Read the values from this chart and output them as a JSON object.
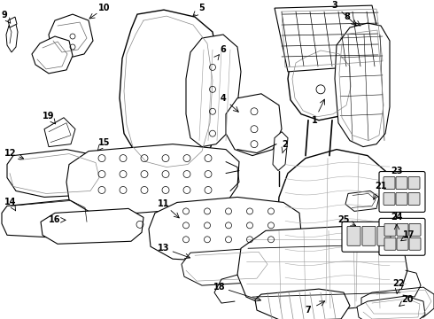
{
  "bg": "#ffffff",
  "lc": "#000000",
  "fig_w": 4.9,
  "fig_h": 3.6,
  "dpi": 100,
  "label_fs": 7.0
}
